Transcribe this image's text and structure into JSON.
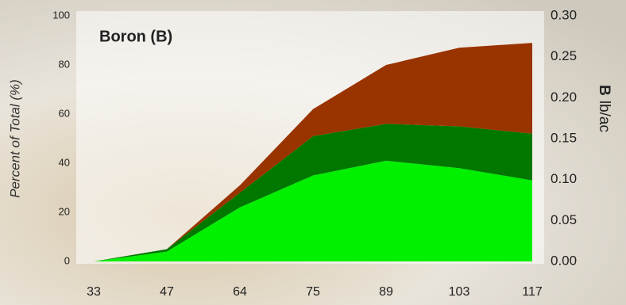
{
  "chart_data": {
    "type": "stacked-area",
    "title": "Boron (B)",
    "ylabel": "Percent of Total (%)",
    "y2label_bold": "B",
    "y2label": "lb/ac",
    "categories": [
      "33",
      "47",
      "64",
      "75",
      "89",
      "103",
      "117"
    ],
    "series": [
      {
        "color": "#00f000",
        "values": [
          0,
          4,
          22,
          35,
          41,
          38,
          33
        ]
      },
      {
        "color": "#007800",
        "values": [
          0,
          1,
          6,
          16,
          15,
          17,
          19
        ]
      },
      {
        "color": "#993300",
        "values": [
          0,
          0,
          3,
          11,
          24,
          32,
          37
        ]
      }
    ],
    "ylim": [
      0,
      100
    ],
    "yticks": [
      0,
      20,
      40,
      60,
      80,
      100
    ],
    "y2lim": [
      0,
      0.3
    ],
    "y2ticks": [
      {
        "value": 0,
        "label": "0.00"
      },
      0.05,
      {
        "value": 0.1,
        "label": "0.10"
      },
      0.15,
      {
        "value": 0.2,
        "label": "0.20"
      },
      0.25,
      {
        "value": 0.3,
        "label": "0.30"
      }
    ]
  }
}
